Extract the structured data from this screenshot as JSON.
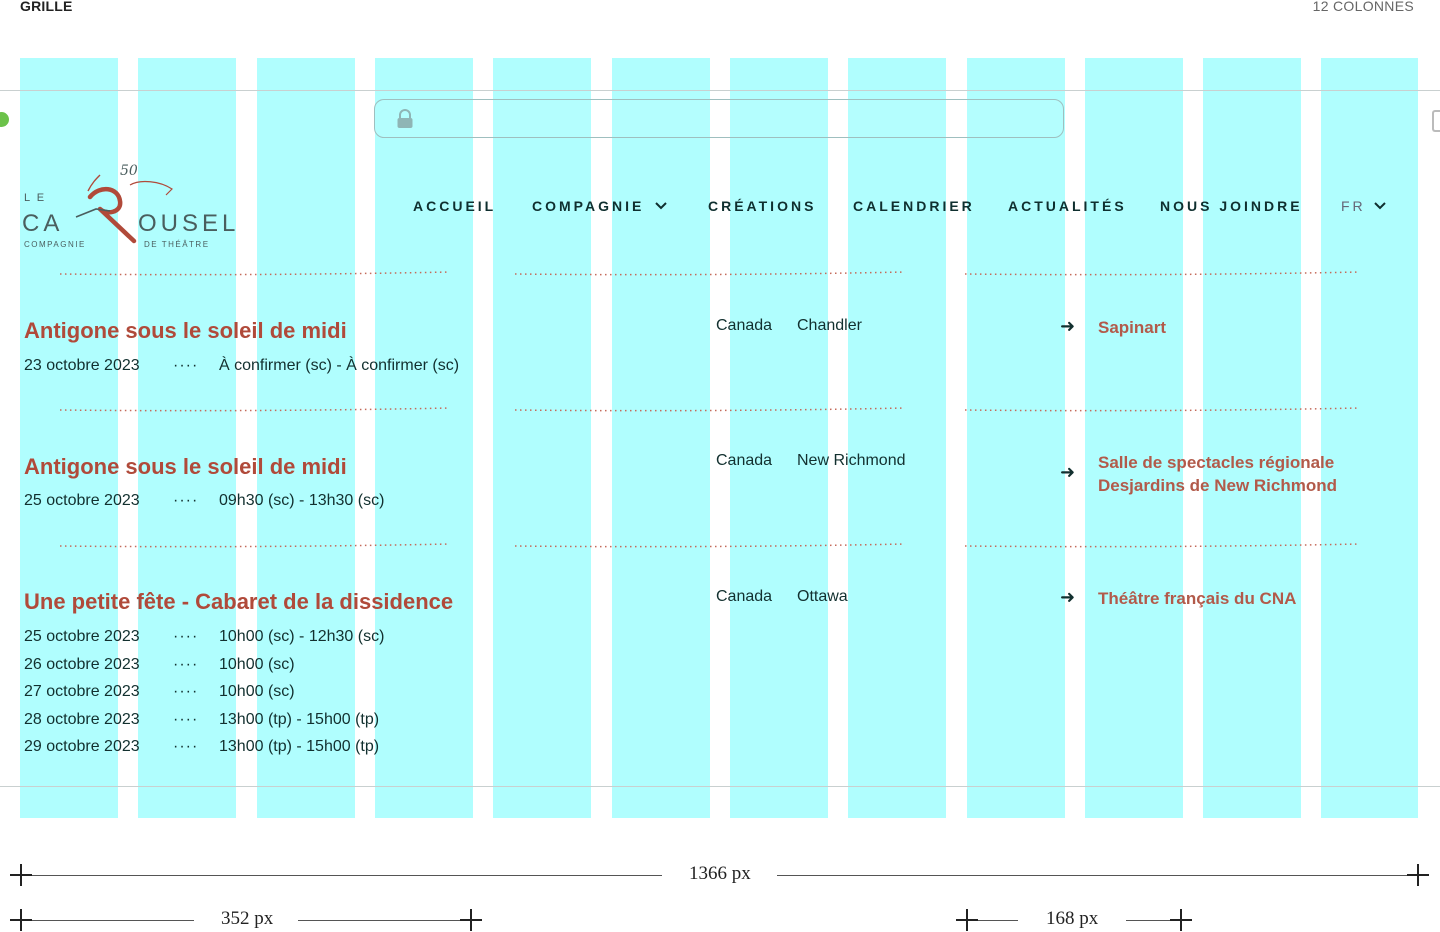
{
  "overlay": {
    "grid_label": "GRILLE",
    "columns_label": "12 COLONNES",
    "grid_color": "#b0fefe",
    "dimensions": {
      "total": "1366 px",
      "left_span": "352 px",
      "right_span": "168 px"
    }
  },
  "brand": {
    "logo_line_le": "L E",
    "logo_ca": "CA",
    "logo_rousel": "OUSEL",
    "logo_50": "50",
    "logo_left_sub": "COMPAGNIE",
    "logo_right_sub": "DE THÉÂTRE",
    "accent": "#b04a3a"
  },
  "nav": {
    "items": [
      {
        "label": "ACCUEIL"
      },
      {
        "label": "COMPAGNIE"
      },
      {
        "label": "CRÉATIONS"
      },
      {
        "label": "CALENDRIER"
      },
      {
        "label": "ACTUALITÉS"
      },
      {
        "label": "NOUS JOINDRE"
      }
    ],
    "language": "FR"
  },
  "events": [
    {
      "title": "Antigone sous le soleil de midi",
      "dates": [
        {
          "date": "23 octobre 2023",
          "sep": "····",
          "time": "À confirmer (sc) - À confirmer (sc)"
        }
      ],
      "country": "Canada",
      "city": "Chandler",
      "venue": "Sapinart"
    },
    {
      "title": "Antigone sous le soleil de midi",
      "dates": [
        {
          "date": "25 octobre 2023",
          "sep": "····",
          "time": "09h30 (sc) - 13h30 (sc)"
        }
      ],
      "country": "Canada",
      "city": "New Richmond",
      "venue": "Salle de spectacles régionale Desjardins de New Richmond"
    },
    {
      "title": "Une petite fête - Cabaret de la dissidence",
      "dates": [
        {
          "date": "25 octobre 2023",
          "sep": "····",
          "time": "10h00 (sc) - 12h30 (sc)"
        },
        {
          "date": "26 octobre 2023",
          "sep": "····",
          "time": "10h00 (sc)"
        },
        {
          "date": "27 octobre 2023",
          "sep": "····",
          "time": "10h00 (sc)"
        },
        {
          "date": "28 octobre 2023",
          "sep": "····",
          "time": "13h00 (tp) - 15h00 (tp)"
        },
        {
          "date": "29 octobre 2023",
          "sep": "····",
          "time": "13h00 (tp) - 15h00 (tp)"
        }
      ],
      "country": "Canada",
      "city": "Ottawa",
      "venue": "Théâtre français du CNA"
    }
  ],
  "arrow_glyph": "➜"
}
